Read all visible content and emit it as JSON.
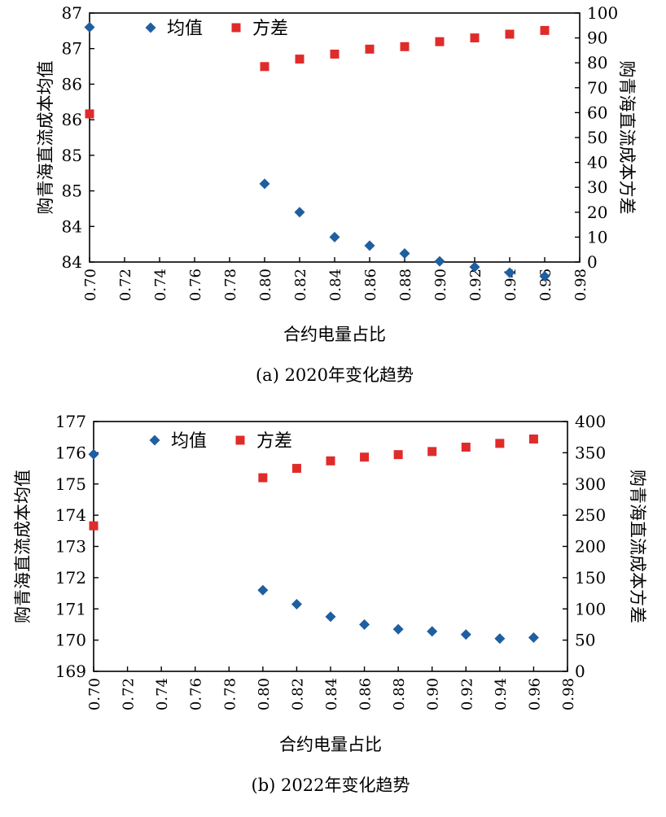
{
  "chart_data": [
    {
      "type": "scatter",
      "caption": "(a) 2020年变化趋势",
      "xlabel": "合约电量占比",
      "ylabel_left": "购青海直流成本均值",
      "ylabel_right": "购青海直流成本方差",
      "x_ticks": [
        "0.70",
        "0.72",
        "0.74",
        "0.76",
        "0.78",
        "0.80",
        "0.82",
        "0.84",
        "0.86",
        "0.88",
        "0.90",
        "0.92",
        "0.94",
        "0.96",
        "0.98"
      ],
      "xlim": [
        0.7,
        0.98
      ],
      "y_left_ticks": [
        "84",
        "84",
        "85",
        "85",
        "86",
        "86",
        "87",
        "87"
      ],
      "y_left_lim": [
        84,
        87.5
      ],
      "y_right_ticks": [
        "0",
        "10",
        "20",
        "30",
        "40",
        "50",
        "60",
        "70",
        "80",
        "90",
        "100"
      ],
      "y_right_lim": [
        0,
        100
      ],
      "grid": false,
      "legend_position": "top",
      "series": [
        {
          "name": "均值",
          "axis": "left",
          "marker": "diamond",
          "color": "#1f5fa0",
          "x": [
            0.7,
            0.8,
            0.82,
            0.84,
            0.86,
            0.88,
            0.9,
            0.92,
            0.94,
            0.96
          ],
          "y": [
            87.3,
            85.1,
            84.7,
            84.35,
            84.23,
            84.12,
            84.01,
            83.93,
            83.85,
            83.8
          ]
        },
        {
          "name": "方差",
          "axis": "right",
          "marker": "square",
          "color": "#e02b2b",
          "x": [
            0.7,
            0.8,
            0.82,
            0.84,
            0.86,
            0.88,
            0.9,
            0.92,
            0.94,
            0.96
          ],
          "y": [
            59.5,
            78.5,
            81.5,
            83.5,
            85.5,
            86.5,
            88.5,
            90,
            91.5,
            93
          ]
        }
      ]
    },
    {
      "type": "scatter",
      "caption": "(b) 2022年变化趋势",
      "xlabel": "合约电量占比",
      "ylabel_left": "购青海直流成本均值",
      "ylabel_right": "购青海直流成本方差",
      "x_ticks": [
        "0.70",
        "0.72",
        "0.74",
        "0.76",
        "0.78",
        "0.80",
        "0.82",
        "0.84",
        "0.86",
        "0.88",
        "0.90",
        "0.92",
        "0.94",
        "0.96",
        "0.98"
      ],
      "xlim": [
        0.7,
        0.98
      ],
      "y_left_ticks": [
        "169",
        "170",
        "171",
        "172",
        "173",
        "174",
        "175",
        "176",
        "177"
      ],
      "y_left_lim": [
        169,
        177
      ],
      "y_right_ticks": [
        "0",
        "50",
        "100",
        "150",
        "200",
        "250",
        "300",
        "350",
        "400"
      ],
      "y_right_lim": [
        0,
        400
      ],
      "grid": false,
      "legend_position": "top",
      "series": [
        {
          "name": "均值",
          "axis": "left",
          "marker": "diamond",
          "color": "#1f5fa0",
          "x": [
            0.7,
            0.8,
            0.82,
            0.84,
            0.86,
            0.88,
            0.9,
            0.92,
            0.94,
            0.96
          ],
          "y": [
            175.95,
            171.6,
            171.15,
            170.75,
            170.5,
            170.35,
            170.28,
            170.18,
            170.05,
            170.08
          ]
        },
        {
          "name": "方差",
          "axis": "right",
          "marker": "square",
          "color": "#e02b2b",
          "x": [
            0.7,
            0.8,
            0.82,
            0.84,
            0.86,
            0.88,
            0.9,
            0.92,
            0.94,
            0.96
          ],
          "y": [
            233,
            310,
            325,
            337,
            343,
            347,
            352,
            359,
            365,
            372
          ]
        }
      ]
    }
  ]
}
